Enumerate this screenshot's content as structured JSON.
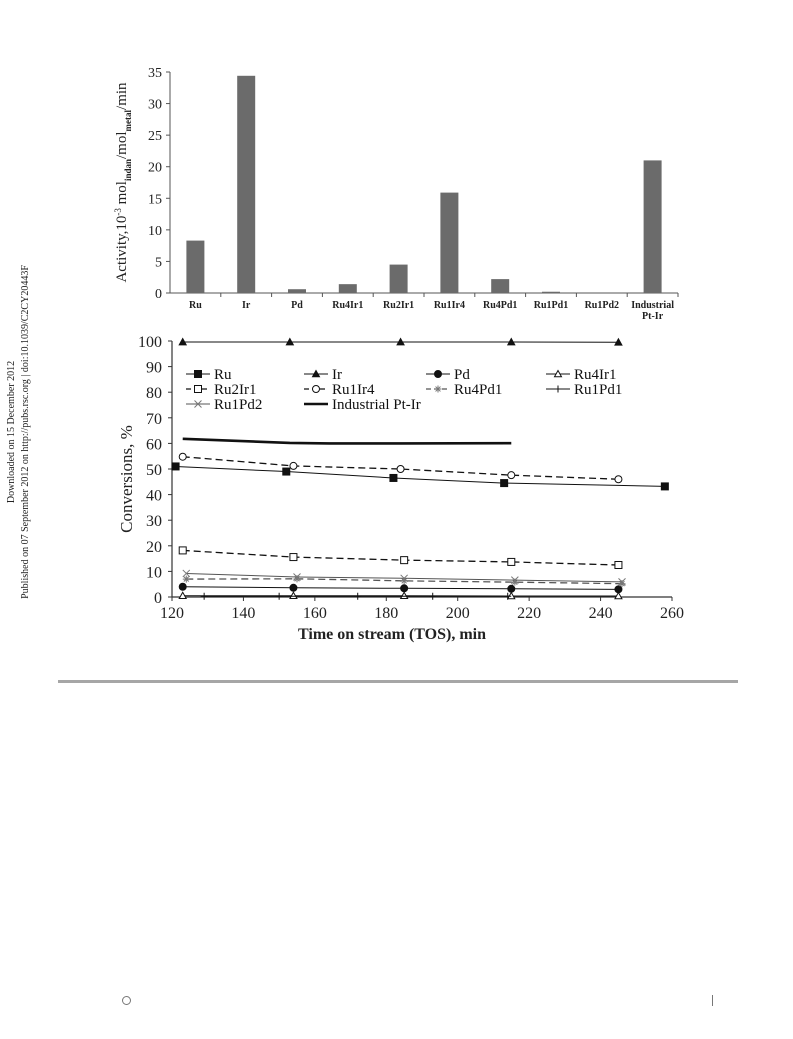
{
  "side_note": {
    "line1": "Downloaded on 15 December 2012",
    "line2": "Published on 07 September 2012 on http://pubs.rsc.org | doi:10.1039/C2CY20443F"
  },
  "chart_data": [
    {
      "type": "bar",
      "ylabel_parts": [
        "Activity,10",
        "-3",
        " mol",
        "indan",
        "/mol",
        "metal",
        "/min"
      ],
      "categories": [
        "Ru",
        "Ir",
        "Pd",
        "Ru4Ir1",
        "Ru2Ir1",
        "Ru1Ir4",
        "Ru4Pd1",
        "Ru1Pd1",
        "Ru1Pd2",
        [
          "Industrial",
          "Pt-Ir"
        ]
      ],
      "values": [
        8.3,
        34.4,
        0.6,
        1.4,
        4.5,
        15.9,
        2.2,
        0.2,
        0.0,
        21.0
      ],
      "ylim": [
        0,
        35
      ],
      "yticks": [
        0,
        5,
        10,
        15,
        20,
        25,
        30,
        35
      ],
      "bar_color": "#6b6b6b",
      "grid": false
    },
    {
      "type": "line",
      "xlabel": "Time on stream (TOS), min",
      "ylabel": "Conversions, %",
      "xlim": [
        120,
        260
      ],
      "ylim": [
        0,
        100
      ],
      "xticks": [
        120,
        140,
        160,
        180,
        200,
        220,
        240,
        260
      ],
      "yticks": [
        0,
        10,
        20,
        30,
        40,
        50,
        60,
        70,
        80,
        90,
        100
      ],
      "legend_position": "top",
      "series": [
        {
          "name": "Ru",
          "marker": "square-filled",
          "dash": "solid",
          "width": 1,
          "x": [
            121,
            152,
            182,
            213,
            258
          ],
          "y": [
            51,
            49,
            46.5,
            44.5,
            43.2
          ]
        },
        {
          "name": "Ir",
          "marker": "triangle-filled",
          "dash": "solid",
          "width": 1,
          "x": [
            123,
            153,
            184,
            215,
            245
          ],
          "y": [
            99.6,
            99.6,
            99.6,
            99.6,
            99.5
          ]
        },
        {
          "name": "Pd",
          "marker": "circle-filled",
          "dash": "solid",
          "width": 1,
          "x": [
            123,
            154,
            185,
            215,
            245
          ],
          "y": [
            4,
            3.6,
            3.4,
            3.2,
            3.0
          ]
        },
        {
          "name": "Ru4Ir1",
          "marker": "triangle-open",
          "dash": "solid",
          "width": 1,
          "x": [
            123,
            154,
            185,
            215,
            245
          ],
          "y": [
            0.5,
            0.5,
            0.5,
            0.4,
            0.4
          ]
        },
        {
          "name": "Ru2Ir1",
          "marker": "square-open",
          "dash": "dashed",
          "width": 1.3,
          "x": [
            123,
            154,
            185,
            215,
            245
          ],
          "y": [
            18.2,
            15.6,
            14.4,
            13.7,
            12.5
          ]
        },
        {
          "name": "Ru1Ir4",
          "marker": "circle-open",
          "dash": "dashed",
          "width": 1.3,
          "x": [
            123,
            154,
            184,
            215,
            245
          ],
          "y": [
            54.8,
            51.2,
            50,
            47.6,
            46
          ]
        },
        {
          "name": "Ru4Pd1",
          "marker": "asterisk",
          "dash": "dashed",
          "width": 1.3,
          "x": [
            124,
            155,
            185,
            216,
            246
          ],
          "y": [
            7,
            7.1,
            6.3,
            5.8,
            5.2
          ]
        },
        {
          "name": "Ru1Pd1",
          "marker": "plus",
          "dash": "solid",
          "width": 1,
          "x": [
            129,
            150,
            172,
            193,
            214
          ],
          "y": [
            0.3,
            0.3,
            0.3,
            0.3,
            0.3
          ]
        },
        {
          "name": "Ru1Pd2",
          "marker": "cross",
          "dash": "solid",
          "width": 1,
          "x": [
            124,
            155,
            185,
            216,
            246
          ],
          "y": [
            9.2,
            7.8,
            7.3,
            6.6,
            5.9
          ]
        },
        {
          "name": "Industrial Pt-Ir",
          "marker": "none",
          "dash": "solid",
          "width": 2.6,
          "x": [
            123,
            153,
            164,
            184,
            215
          ],
          "y": [
            61.8,
            60.2,
            60,
            60,
            60.1
          ]
        }
      ]
    }
  ]
}
